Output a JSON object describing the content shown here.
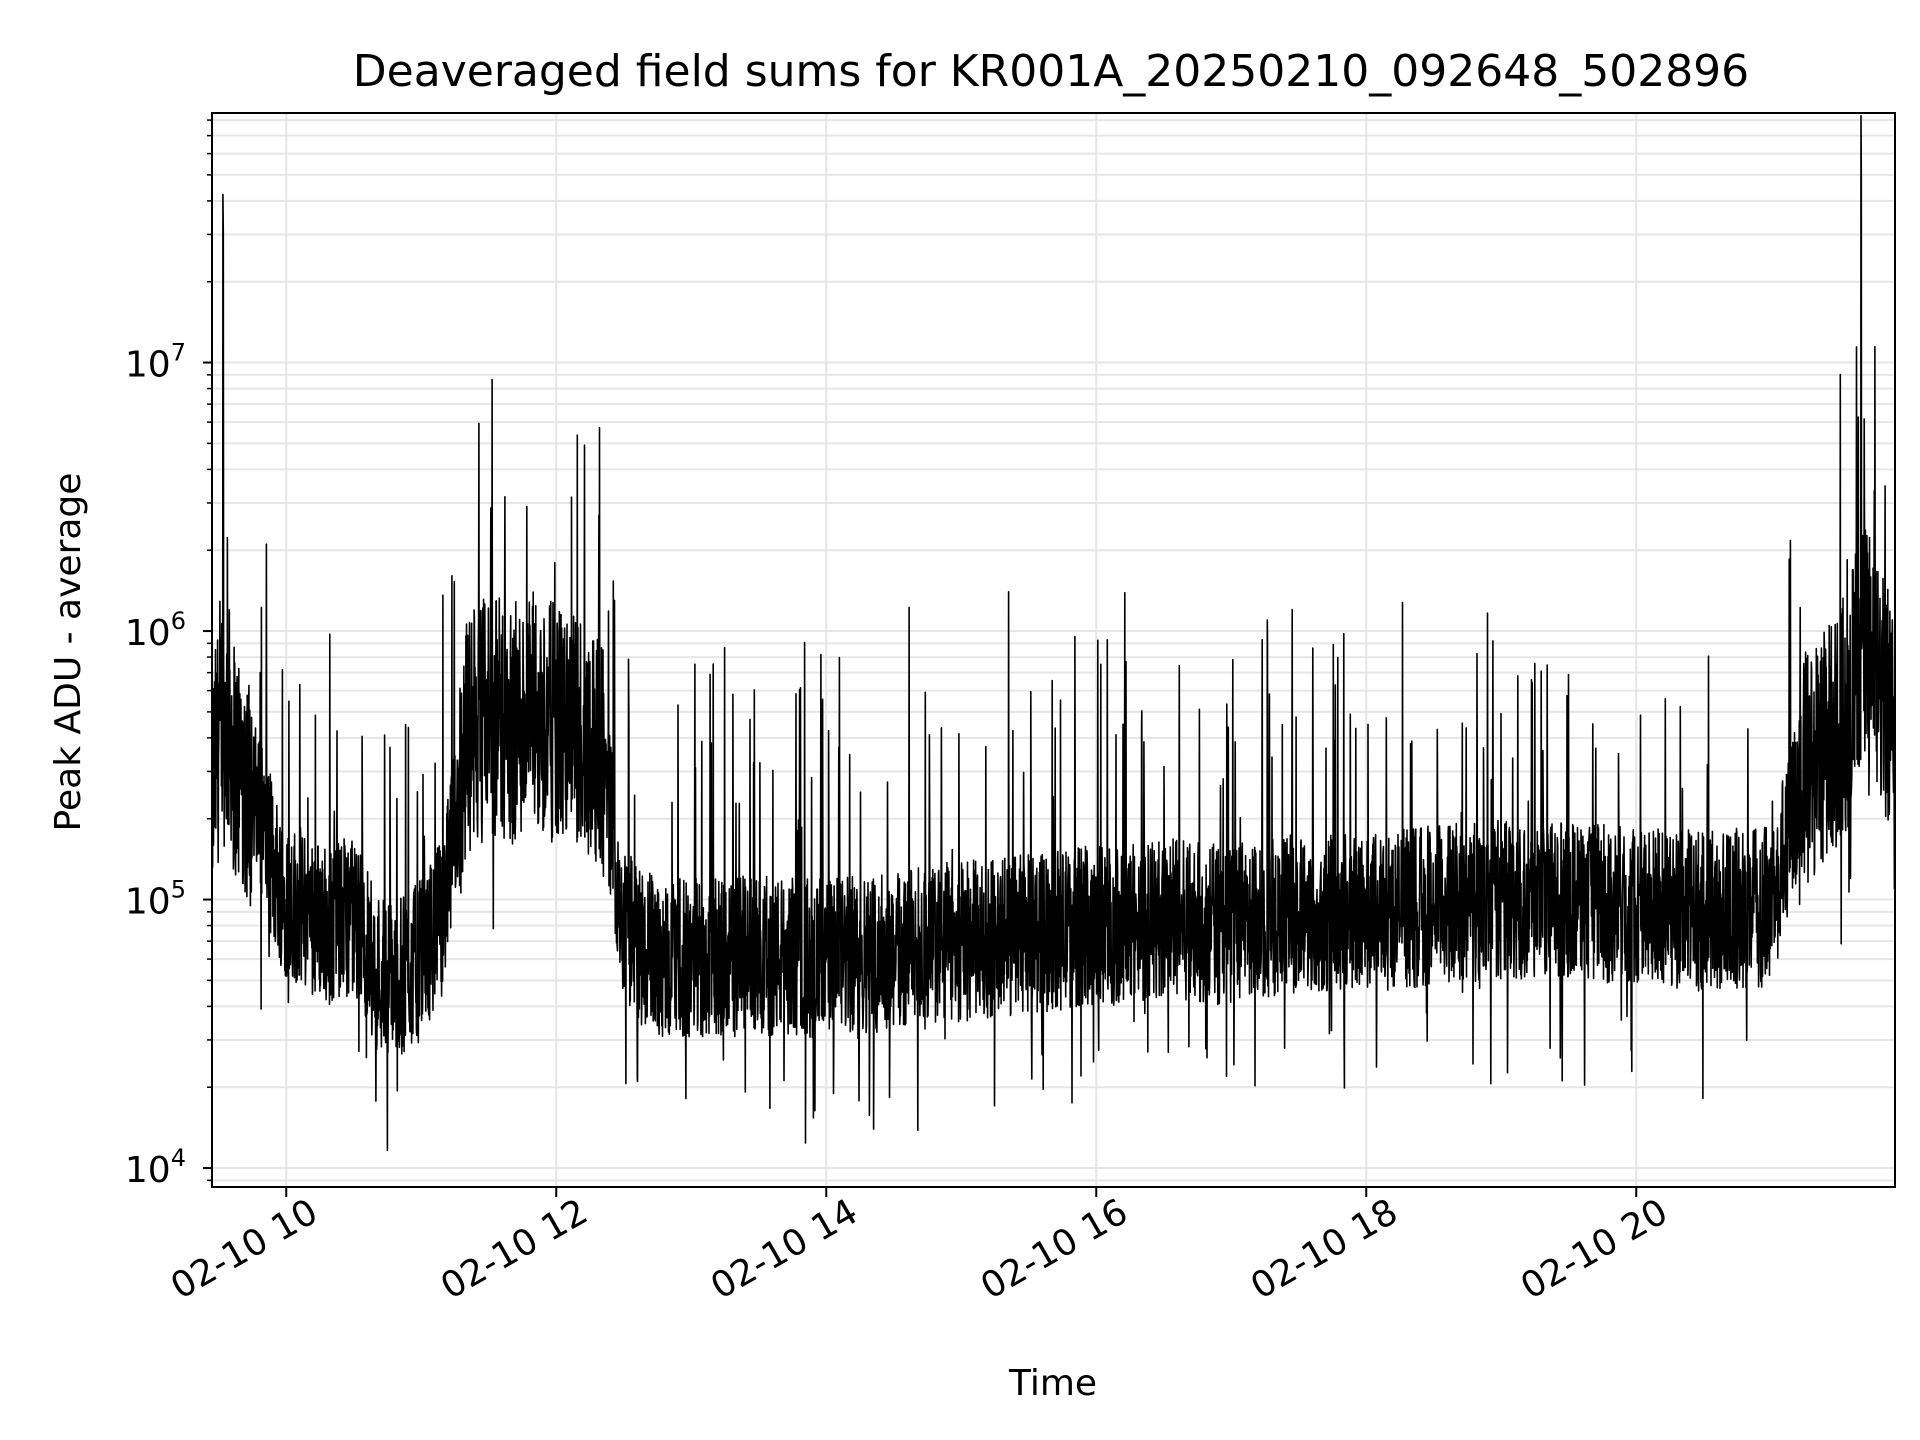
{
  "chart_data": {
    "type": "line",
    "title": "Deaveraged field sums for KR001A_20250210_092648_502896",
    "xlabel": "Time",
    "ylabel": "Peak ADU - average",
    "yscale": "log",
    "ylim": [
      8500,
      85000000
    ],
    "xlim": [
      "2025-02-10 09:27",
      "2025-02-10 21:55"
    ],
    "grid": true,
    "x_ticks": [
      {
        "t": "2025-02-10 10:00",
        "label": "02-10 10"
      },
      {
        "t": "2025-02-10 12:00",
        "label": "02-10 12"
      },
      {
        "t": "2025-02-10 14:00",
        "label": "02-10 14"
      },
      {
        "t": "2025-02-10 16:00",
        "label": "02-10 16"
      },
      {
        "t": "2025-02-10 18:00",
        "label": "02-10 18"
      },
      {
        "t": "2025-02-10 20:00",
        "label": "02-10 20"
      }
    ],
    "y_ticks": [
      {
        "value": 10000,
        "base": "10",
        "exp": "4"
      },
      {
        "value": 100000,
        "base": "10",
        "exp": "5"
      },
      {
        "value": 1000000,
        "base": "10",
        "exp": "6"
      },
      {
        "value": 10000000,
        "base": "10",
        "exp": "7"
      }
    ],
    "series": [
      {
        "color": "#000000",
        "x": [
          "2025-02-10 09:27",
          "2025-02-10 09:30",
          "2025-02-10 09:32",
          "2025-02-10 09:36",
          "2025-02-10 09:40",
          "2025-02-10 09:45",
          "2025-02-10 09:50",
          "2025-02-10 09:55",
          "2025-02-10 10:00",
          "2025-02-10 10:10",
          "2025-02-10 10:20",
          "2025-02-10 10:30",
          "2025-02-10 10:40",
          "2025-02-10 10:50",
          "2025-02-10 11:00",
          "2025-02-10 11:10",
          "2025-02-10 11:20",
          "2025-02-10 11:30",
          "2025-02-10 11:40",
          "2025-02-10 11:50",
          "2025-02-10 12:00",
          "2025-02-10 12:10",
          "2025-02-10 12:20",
          "2025-02-10 12:30",
          "2025-02-10 12:40",
          "2025-02-10 12:50",
          "2025-02-10 13:00",
          "2025-02-10 13:30",
          "2025-02-10 14:00",
          "2025-02-10 14:30",
          "2025-02-10 15:00",
          "2025-02-10 15:30",
          "2025-02-10 16:00",
          "2025-02-10 16:30",
          "2025-02-10 17:00",
          "2025-02-10 17:30",
          "2025-02-10 18:00",
          "2025-02-10 18:30",
          "2025-02-10 19:00",
          "2025-02-10 19:30",
          "2025-02-10 20:00",
          "2025-02-10 20:30",
          "2025-02-10 21:00",
          "2025-02-10 21:15",
          "2025-02-10 21:30",
          "2025-02-10 21:36",
          "2025-02-10 21:40",
          "2025-02-10 21:45",
          "2025-02-10 21:55"
        ],
        "values": [
          250000,
          400000,
          30000000,
          350000,
          300000,
          250000,
          180000,
          130000,
          100000,
          90000,
          80000,
          90000,
          55000,
          50000,
          60000,
          90000,
          400000,
          500000,
          450000,
          500000,
          450000,
          420000,
          380000,
          80000,
          65000,
          60000,
          60000,
          62000,
          60000,
          65000,
          70000,
          75000,
          80000,
          85000,
          80000,
          90000,
          90000,
          95000,
          100000,
          100000,
          95000,
          90000,
          95000,
          300000,
          450000,
          550000,
          50000000,
          700000,
          450000
        ]
      }
    ]
  }
}
